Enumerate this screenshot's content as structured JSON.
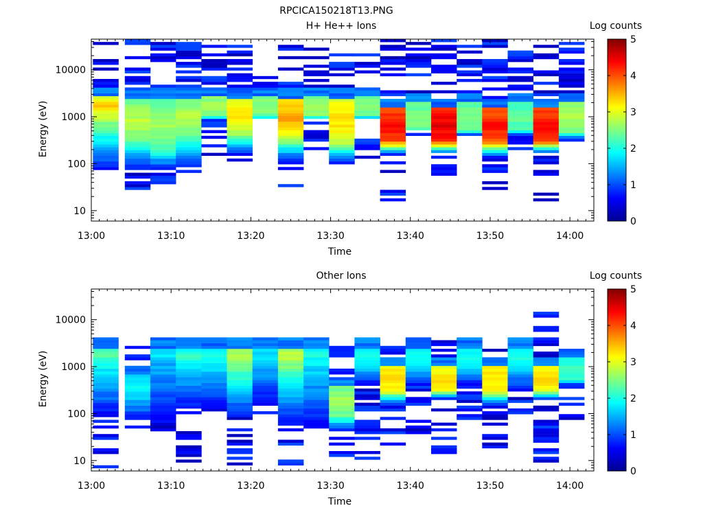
{
  "figure_title": "RPCICA150218T13.PNG",
  "chart_data": [
    {
      "type": "heatmap",
      "title": "H+ He++ Ions",
      "xlabel": "Time",
      "ylabel": "Energy (eV)",
      "x_ticks": [
        "13:00",
        "13:10",
        "13:20",
        "13:30",
        "13:40",
        "13:50",
        "14:00"
      ],
      "xlim": [
        "13:00",
        "14:03"
      ],
      "y_scale": "log",
      "ylim": [
        6,
        45000
      ],
      "y_ticks": [
        10,
        100,
        1000,
        10000
      ],
      "y_tick_labels": [
        "10",
        "100",
        "1000",
        "10000"
      ],
      "colorbar": {
        "label": "Log counts",
        "range": [
          0,
          5
        ],
        "ticks": [
          "0",
          "1",
          "2",
          "3",
          "4",
          "5"
        ],
        "colormap": "jet"
      },
      "grid": false,
      "columns": [
        {
          "t0": 0.2,
          "t1": 3.4,
          "low": 70,
          "bright": [
            1000,
            2800
          ],
          "peak": 2.8,
          "maxv": 3.4,
          "sparse_hi": 45000,
          "sparse_lo": 60
        },
        {
          "t0": 4.2,
          "t1": 7.4,
          "low": 80,
          "bright": [
            300,
            2500
          ],
          "peak": 2.4,
          "maxv": 2.8,
          "sparse_hi": 45000,
          "sparse_lo": 28
        },
        {
          "t0": 7.4,
          "t1": 10.6,
          "low": 70,
          "bright": [
            200,
            2500
          ],
          "peak": 2.2,
          "maxv": 2.7,
          "sparse_hi": 40000,
          "sparse_lo": 30
        },
        {
          "t0": 10.6,
          "t1": 13.8,
          "low": 80,
          "bright": [
            400,
            2500
          ],
          "peak": 2.4,
          "maxv": 2.8,
          "sparse_hi": 40000,
          "sparse_lo": 55
        },
        {
          "t0": 13.8,
          "t1": 17.0,
          "low": 900,
          "bright": [
            1000,
            2600
          ],
          "peak": 2.5,
          "maxv": 2.7,
          "sparse_hi": 38000,
          "sparse_lo": 150
        },
        {
          "t0": 17.0,
          "t1": 20.2,
          "low": 150,
          "bright": [
            500,
            2500
          ],
          "peak": 2.9,
          "maxv": 3.3,
          "sparse_hi": 45000,
          "sparse_lo": 110
        },
        {
          "t0": 20.2,
          "t1": 23.4,
          "low": 900,
          "bright": [
            1000,
            2600
          ],
          "peak": 2.4,
          "maxv": 2.6,
          "sparse_hi": 8500,
          "sparse_lo": 900
        },
        {
          "t0": 23.4,
          "t1": 26.6,
          "low": 110,
          "bright": [
            400,
            2500
          ],
          "peak": 3.1,
          "maxv": 3.6,
          "sparse_hi": 45000,
          "sparse_lo": 34
        },
        {
          "t0": 26.6,
          "t1": 29.8,
          "low": 900,
          "bright": [
            1000,
            2600
          ],
          "peak": 2.5,
          "maxv": 2.7,
          "sparse_hi": 30000,
          "sparse_lo": 180
        },
        {
          "t0": 29.8,
          "t1": 33.0,
          "low": 100,
          "bright": [
            300,
            2500
          ],
          "peak": 2.9,
          "maxv": 3.3,
          "sparse_hi": 40000,
          "sparse_lo": 60
        },
        {
          "t0": 33.0,
          "t1": 36.2,
          "low": 900,
          "bright": [
            1000,
            2600
          ],
          "peak": 2.4,
          "maxv": 2.6,
          "sparse_hi": 22000,
          "sparse_lo": 130
        },
        {
          "t0": 36.2,
          "t1": 39.4,
          "low": 150,
          "bright": [
            300,
            1500
          ],
          "peak": 4.0,
          "maxv": 4.4,
          "sparse_hi": 45000,
          "sparse_lo": 17
        },
        {
          "t0": 39.4,
          "t1": 42.6,
          "low": 500,
          "bright": [
            500,
            2000
          ],
          "peak": 2.3,
          "maxv": 2.5,
          "sparse_hi": 45000,
          "sparse_lo": 130
        },
        {
          "t0": 42.6,
          "t1": 45.8,
          "low": 160,
          "bright": [
            300,
            1500
          ],
          "peak": 4.2,
          "maxv": 4.5,
          "sparse_hi": 45000,
          "sparse_lo": 50
        },
        {
          "t0": 45.8,
          "t1": 49.0,
          "low": 400,
          "bright": [
            500,
            2000
          ],
          "peak": 2.3,
          "maxv": 2.5,
          "sparse_hi": 40000,
          "sparse_lo": 400
        },
        {
          "t0": 49.0,
          "t1": 52.2,
          "low": 130,
          "bright": [
            300,
            1500
          ],
          "peak": 3.9,
          "maxv": 4.3,
          "sparse_hi": 45000,
          "sparse_lo": 27
        },
        {
          "t0": 52.2,
          "t1": 55.4,
          "low": 400,
          "bright": [
            500,
            2000
          ],
          "peak": 2.2,
          "maxv": 2.4,
          "sparse_hi": 38000,
          "sparse_lo": 200
        },
        {
          "t0": 55.4,
          "t1": 58.6,
          "low": 160,
          "bright": [
            300,
            1500
          ],
          "peak": 4.0,
          "maxv": 4.4,
          "sparse_hi": 40000,
          "sparse_lo": 17
        },
        {
          "t0": 58.6,
          "t1": 61.8,
          "low": 300,
          "bright": [
            500,
            2000
          ],
          "peak": 2.5,
          "maxv": 2.7,
          "sparse_hi": 40000,
          "sparse_lo": 280
        }
      ]
    },
    {
      "type": "heatmap",
      "title": "Other Ions",
      "xlabel": "Time",
      "ylabel": "Energy (eV)",
      "x_ticks": [
        "13:00",
        "13:10",
        "13:20",
        "13:30",
        "13:40",
        "13:50",
        "14:00"
      ],
      "xlim": [
        "13:00",
        "14:03"
      ],
      "y_scale": "log",
      "ylim": [
        6,
        45000
      ],
      "y_ticks": [
        10,
        100,
        1000,
        10000
      ],
      "y_tick_labels": [
        "10",
        "100",
        "1000",
        "10000"
      ],
      "colorbar": {
        "label": "Log counts",
        "range": [
          0,
          5
        ],
        "ticks": [
          "0",
          "1",
          "2",
          "3",
          "4",
          "5"
        ],
        "colormap": "jet"
      },
      "grid": false,
      "columns": [
        {
          "t0": 0.2,
          "t1": 3.4,
          "low": 80,
          "bright": [
            1200,
            2500
          ],
          "peak": 2.0,
          "maxv": 2.3,
          "sparse_hi": 3800,
          "sparse_lo": 7
        },
        {
          "t0": 4.2,
          "t1": 7.4,
          "low": 70,
          "bright": [
            200,
            700
          ],
          "peak": 1.6,
          "maxv": 1.9,
          "sparse_hi": 2600,
          "sparse_lo": 30
        },
        {
          "t0": 7.4,
          "t1": 10.6,
          "low": 60,
          "bright": [
            1200,
            2500
          ],
          "peak": 1.5,
          "maxv": 1.8,
          "sparse_hi": 3200,
          "sparse_lo": 40
        },
        {
          "t0": 10.6,
          "t1": 13.8,
          "low": 130,
          "bright": [
            1200,
            2500
          ],
          "peak": 1.9,
          "maxv": 2.1,
          "sparse_hi": 3500,
          "sparse_lo": 7
        },
        {
          "t0": 13.8,
          "t1": 17.0,
          "low": 130,
          "bright": [
            1200,
            2500
          ],
          "peak": 1.8,
          "maxv": 2.0,
          "sparse_hi": 3800,
          "sparse_lo": 110
        },
        {
          "t0": 17.0,
          "t1": 20.2,
          "low": 80,
          "bright": [
            1200,
            2500
          ],
          "peak": 2.6,
          "maxv": 2.8,
          "sparse_hi": 3800,
          "sparse_lo": 7
        },
        {
          "t0": 20.2,
          "t1": 23.4,
          "low": 150,
          "bright": [
            1200,
            2500
          ],
          "peak": 1.6,
          "maxv": 1.8,
          "sparse_hi": 3800,
          "sparse_lo": 75
        },
        {
          "t0": 23.4,
          "t1": 26.6,
          "low": 60,
          "bright": [
            1200,
            2500
          ],
          "peak": 2.6,
          "maxv": 2.8,
          "sparse_hi": 4200,
          "sparse_lo": 7
        },
        {
          "t0": 26.6,
          "t1": 29.8,
          "low": 50,
          "bright": [
            1200,
            2500
          ],
          "peak": 1.8,
          "maxv": 2.0,
          "sparse_hi": 3800,
          "sparse_lo": 50
        },
        {
          "t0": 29.8,
          "t1": 33.0,
          "low": 40,
          "bright": [
            90,
            400
          ],
          "peak": 2.4,
          "maxv": 2.7,
          "sparse_hi": 4200,
          "sparse_lo": 11
        },
        {
          "t0": 33.0,
          "t1": 36.2,
          "low": 400,
          "bright": [
            1000,
            2500
          ],
          "peak": 1.8,
          "maxv": 2.0,
          "sparse_hi": 3400,
          "sparse_lo": 7
        },
        {
          "t0": 36.2,
          "t1": 39.4,
          "low": 150,
          "bright": [
            300,
            1000
          ],
          "peak": 3.1,
          "maxv": 3.3,
          "sparse_hi": 3400,
          "sparse_lo": 18
        },
        {
          "t0": 39.4,
          "t1": 42.6,
          "low": 400,
          "bright": [
            1000,
            2500
          ],
          "peak": 1.8,
          "maxv": 2.0,
          "sparse_hi": 3200,
          "sparse_lo": 38
        },
        {
          "t0": 42.6,
          "t1": 45.8,
          "low": 200,
          "bright": [
            300,
            1000
          ],
          "peak": 3.0,
          "maxv": 3.3,
          "sparse_hi": 6500,
          "sparse_lo": 11
        },
        {
          "t0": 45.8,
          "t1": 49.0,
          "low": 400,
          "bright": [
            1000,
            2500
          ],
          "peak": 1.8,
          "maxv": 2.0,
          "sparse_hi": 2600,
          "sparse_lo": 45
        },
        {
          "t0": 49.0,
          "t1": 52.2,
          "low": 150,
          "bright": [
            300,
            1000
          ],
          "peak": 3.1,
          "maxv": 3.3,
          "sparse_hi": 3600,
          "sparse_lo": 18
        },
        {
          "t0": 52.2,
          "t1": 55.4,
          "low": 300,
          "bright": [
            1000,
            2500
          ],
          "peak": 1.8,
          "maxv": 2.0,
          "sparse_hi": 3600,
          "sparse_lo": 95
        },
        {
          "t0": 55.4,
          "t1": 58.6,
          "low": 200,
          "bright": [
            300,
            1000
          ],
          "peak": 3.0,
          "maxv": 3.3,
          "sparse_hi": 15000,
          "sparse_lo": 7
        },
        {
          "t0": 58.6,
          "t1": 61.8,
          "low": 400,
          "bright": [
            500,
            1500
          ],
          "peak": 2.0,
          "maxv": 2.2,
          "sparse_hi": 3000,
          "sparse_lo": 70
        }
      ]
    }
  ]
}
